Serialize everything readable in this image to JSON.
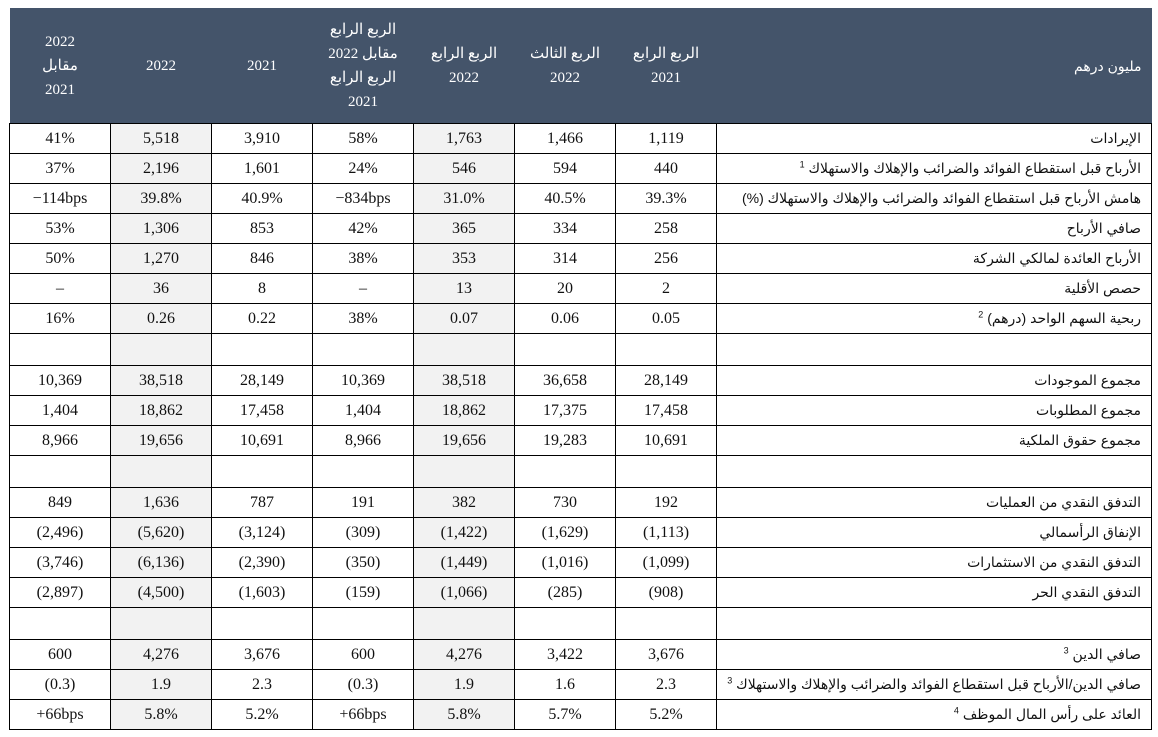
{
  "table": {
    "headers": {
      "unit": "مليون درهم",
      "q4_2021": [
        "الربع الرابع",
        "2021"
      ],
      "q3_2022": [
        "الربع الثالث",
        "2022"
      ],
      "q4_2022": [
        "الربع الرابع",
        "2022"
      ],
      "q4_vs": [
        "الربع الرابع",
        "2022 مقابل",
        "الربع الرابع",
        "2021"
      ],
      "fy_2021": "2021",
      "fy_2022": "2022",
      "fy_vs": [
        "2022",
        "مقابل",
        "2021"
      ]
    },
    "rows": [
      {
        "label": "الإيرادات",
        "sup": "",
        "q4_2021": "1,119",
        "q3_2022": "1,466",
        "q4_2022": "1,763",
        "q4_vs": "58%",
        "fy_2021": "3,910",
        "fy_2022": "5,518",
        "fy_vs": "41%"
      },
      {
        "label": "الأرباح قبل استقطاع الفوائد والضرائب والإهلاك والاستهلاك",
        "sup": "1",
        "q4_2021": "440",
        "q3_2022": "594",
        "q4_2022": "546",
        "q4_vs": "24%",
        "fy_2021": "1,601",
        "fy_2022": "2,196",
        "fy_vs": "37%"
      },
      {
        "label": "هامش الأرباح قبل استقطاع الفوائد والضرائب والإهلاك والاستهلاك (%)",
        "sup": "",
        "q4_2021": "39.3%",
        "q3_2022": "40.5%",
        "q4_2022": "31.0%",
        "q4_vs": "−834bps",
        "fy_2021": "40.9%",
        "fy_2022": "39.8%",
        "fy_vs": "−114bps"
      },
      {
        "label": "صافي الأرباح",
        "sup": "",
        "q4_2021": "258",
        "q3_2022": "334",
        "q4_2022": "365",
        "q4_vs": "42%",
        "fy_2021": "853",
        "fy_2022": "1,306",
        "fy_vs": "53%"
      },
      {
        "label": "الأرباح العائدة لمالكي الشركة",
        "sup": "",
        "q4_2021": "256",
        "q3_2022": "314",
        "q4_2022": "353",
        "q4_vs": "38%",
        "fy_2021": "846",
        "fy_2022": "1,270",
        "fy_vs": "50%"
      },
      {
        "label": "حصص الأقلية",
        "sup": "",
        "q4_2021": "2",
        "q3_2022": "20",
        "q4_2022": "13",
        "q4_vs": "–",
        "fy_2021": "8",
        "fy_2022": "36",
        "fy_vs": "–"
      },
      {
        "label": "ربحية السهم الواحد (درهم)",
        "sup": "2",
        "q4_2021": "0.05",
        "q3_2022": "0.06",
        "q4_2022": "0.07",
        "q4_vs": "38%",
        "fy_2021": "0.22",
        "fy_2022": "0.26",
        "fy_vs": "16%"
      },
      {
        "blank": true
      },
      {
        "label": "مجموع الموجودات",
        "sup": "",
        "q4_2021": "28,149",
        "q3_2022": "36,658",
        "q4_2022": "38,518",
        "q4_vs": "10,369",
        "fy_2021": "28,149",
        "fy_2022": "38,518",
        "fy_vs": "10,369"
      },
      {
        "label": "مجموع المطلوبات",
        "sup": "",
        "q4_2021": "17,458",
        "q3_2022": "17,375",
        "q4_2022": "18,862",
        "q4_vs": "1,404",
        "fy_2021": "17,458",
        "fy_2022": "18,862",
        "fy_vs": "1,404"
      },
      {
        "label": "مجموع حقوق الملكية",
        "sup": "",
        "q4_2021": "10,691",
        "q3_2022": "19,283",
        "q4_2022": "19,656",
        "q4_vs": "8,966",
        "fy_2021": "10,691",
        "fy_2022": "19,656",
        "fy_vs": "8,966"
      },
      {
        "blank": true
      },
      {
        "label": "التدفق النقدي من العمليات",
        "sup": "",
        "q4_2021": "192",
        "q3_2022": "730",
        "q4_2022": "382",
        "q4_vs": "191",
        "fy_2021": "787",
        "fy_2022": "1,636",
        "fy_vs": "849"
      },
      {
        "label": "الإنفاق الرأسمالي",
        "sup": "",
        "q4_2021": "(1,113)",
        "q3_2022": "(1,629)",
        "q4_2022": "(1,422)",
        "q4_vs": "(309)",
        "fy_2021": "(3,124)",
        "fy_2022": "(5,620)",
        "fy_vs": "(2,496)"
      },
      {
        "label": "التدفق النقدي من الاستثمارات",
        "sup": "",
        "q4_2021": "(1,099)",
        "q3_2022": "(1,016)",
        "q4_2022": "(1,449)",
        "q4_vs": "(350)",
        "fy_2021": "(2,390)",
        "fy_2022": "(6,136)",
        "fy_vs": "(3,746)"
      },
      {
        "label": "التدفق النقدي الحر",
        "sup": "",
        "q4_2021": "(908)",
        "q3_2022": "(285)",
        "q4_2022": "(1,066)",
        "q4_vs": "(159)",
        "fy_2021": "(1,603)",
        "fy_2022": "(4,500)",
        "fy_vs": "(2,897)"
      },
      {
        "blank": true
      },
      {
        "label": "صافي الدين",
        "sup": "3",
        "q4_2021": "3,676",
        "q3_2022": "3,422",
        "q4_2022": "4,276",
        "q4_vs": "600",
        "fy_2021": "3,676",
        "fy_2022": "4,276",
        "fy_vs": "600"
      },
      {
        "label": "صافي الدين/الأرباح قبل استقطاع الفوائد والضرائب والإهلاك والاستهلاك",
        "sup": "3",
        "q4_2021": "2.3",
        "q3_2022": "1.6",
        "q4_2022": "1.9",
        "q4_vs": "(0.3)",
        "fy_2021": "2.3",
        "fy_2022": "1.9",
        "fy_vs": "(0.3)"
      },
      {
        "label": "العائد على رأس المال الموظف",
        "sup": "4",
        "q4_2021": "5.2%",
        "q3_2022": "5.7%",
        "q4_2022": "5.8%",
        "q4_vs": "+66bps",
        "fy_2021": "5.2%",
        "fy_2022": "5.8%",
        "fy_vs": "+66bps"
      }
    ]
  },
  "colors": {
    "header_bg": "#44546a",
    "header_text": "#ffffff",
    "shaded_column": "#f2f2f2",
    "border": "#000000"
  }
}
